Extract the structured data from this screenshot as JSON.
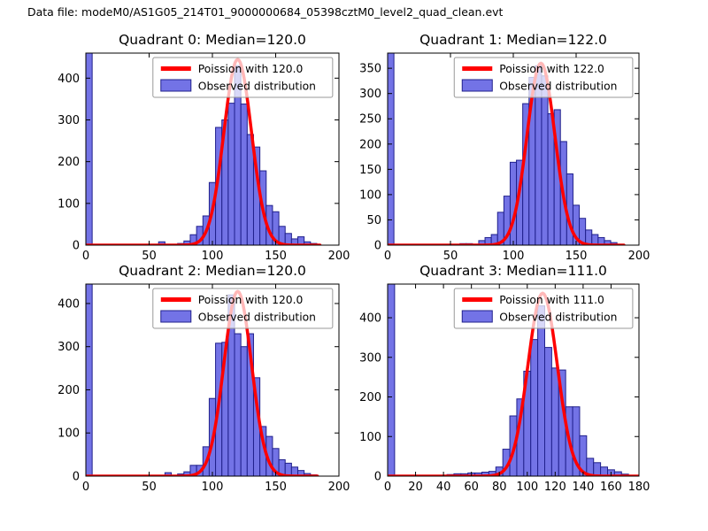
{
  "figure": {
    "title": "Data file: modeM0/AS1G05_214T01_9000000684_05398cztM0_level2_quad_clean.evt",
    "colors": {
      "background": "#ffffff",
      "bar_fill": "#7373e6",
      "bar_edge": "#20208c",
      "curve": "#ff0000",
      "legend_background": "rgba(255,255,255,0.72)",
      "legend_border": "#999999",
      "axis": "#000000"
    }
  },
  "chart_data": [
    {
      "type": "bar",
      "subtype": "histogram-with-fit",
      "title": "Quadrant 0: Median=120.0",
      "median": 120.0,
      "legend": [
        "Poission with 120.0",
        "Observed distribution"
      ],
      "legend_position": "upper right",
      "xlim": [
        0,
        200
      ],
      "ylim": [
        0,
        460
      ],
      "x_ticks": [
        0,
        50,
        100,
        150,
        200
      ],
      "y_ticks": [
        0,
        100,
        200,
        300,
        400
      ],
      "bin_width": 5,
      "bars": [
        [
          0,
          460
        ],
        [
          57.5,
          8
        ],
        [
          72.5,
          4
        ],
        [
          77.5,
          10
        ],
        [
          82.5,
          25
        ],
        [
          87.5,
          45
        ],
        [
          92.5,
          70
        ],
        [
          97.5,
          150
        ],
        [
          102.5,
          282
        ],
        [
          107.5,
          300
        ],
        [
          112.5,
          340
        ],
        [
          117.5,
          430
        ],
        [
          122.5,
          338
        ],
        [
          127.5,
          265
        ],
        [
          132.5,
          235
        ],
        [
          137.5,
          178
        ],
        [
          142.5,
          95
        ],
        [
          147.5,
          80
        ],
        [
          152.5,
          45
        ],
        [
          157.5,
          28
        ],
        [
          162.5,
          15
        ],
        [
          167.5,
          20
        ],
        [
          172.5,
          8
        ],
        [
          177.5,
          4
        ]
      ],
      "poisson_curve": {
        "mean": 120.0,
        "sigma": 10.95,
        "peak": 445,
        "x_range": [
          0,
          185
        ]
      }
    },
    {
      "type": "bar",
      "subtype": "histogram-with-fit",
      "title": "Quadrant 1: Median=122.0",
      "median": 122.0,
      "legend": [
        "Poission with 122.0",
        "Observed distribution"
      ],
      "legend_position": "upper right",
      "xlim": [
        0,
        200
      ],
      "ylim": [
        0,
        380
      ],
      "x_ticks": [
        0,
        50,
        100,
        150,
        200
      ],
      "y_ticks": [
        0,
        50,
        100,
        150,
        200,
        250,
        300,
        350
      ],
      "bin_width": 5,
      "bars": [
        [
          0,
          380
        ],
        [
          57.5,
          3
        ],
        [
          62.5,
          3
        ],
        [
          67.5,
          2
        ],
        [
          72.5,
          9
        ],
        [
          77.5,
          15
        ],
        [
          82.5,
          21
        ],
        [
          87.5,
          65
        ],
        [
          92.5,
          97
        ],
        [
          97.5,
          164
        ],
        [
          102.5,
          168
        ],
        [
          107.5,
          280
        ],
        [
          112.5,
          332
        ],
        [
          117.5,
          355
        ],
        [
          122.5,
          335
        ],
        [
          127.5,
          260
        ],
        [
          132.5,
          268
        ],
        [
          137.5,
          205
        ],
        [
          142.5,
          141
        ],
        [
          147.5,
          79
        ],
        [
          152.5,
          53
        ],
        [
          157.5,
          30
        ],
        [
          162.5,
          21
        ],
        [
          167.5,
          15
        ],
        [
          172.5,
          9
        ],
        [
          177.5,
          5
        ]
      ],
      "poisson_curve": {
        "mean": 122.0,
        "sigma": 11.05,
        "peak": 360,
        "x_range": [
          0,
          188
        ]
      }
    },
    {
      "type": "bar",
      "subtype": "histogram-with-fit",
      "title": "Quadrant 2: Median=120.0",
      "median": 120.0,
      "legend": [
        "Poission with 120.0",
        "Observed distribution"
      ],
      "legend_position": "upper right",
      "xlim": [
        0,
        200
      ],
      "ylim": [
        0,
        445
      ],
      "x_ticks": [
        0,
        50,
        100,
        150,
        200
      ],
      "y_ticks": [
        0,
        100,
        200,
        300,
        400
      ],
      "bin_width": 5,
      "bars": [
        [
          0,
          445
        ],
        [
          62.5,
          8
        ],
        [
          72.5,
          5
        ],
        [
          77.5,
          10
        ],
        [
          82.5,
          25
        ],
        [
          87.5,
          25
        ],
        [
          92.5,
          68
        ],
        [
          97.5,
          180
        ],
        [
          102.5,
          308
        ],
        [
          107.5,
          310
        ],
        [
          112.5,
          420
        ],
        [
          117.5,
          330
        ],
        [
          122.5,
          300
        ],
        [
          127.5,
          330
        ],
        [
          132.5,
          228
        ],
        [
          137.5,
          115
        ],
        [
          142.5,
          92
        ],
        [
          147.5,
          64
        ],
        [
          152.5,
          38
        ],
        [
          157.5,
          30
        ],
        [
          162.5,
          21
        ],
        [
          167.5,
          13
        ],
        [
          172.5,
          6
        ],
        [
          177.5,
          3
        ]
      ],
      "poisson_curve": {
        "mean": 120.0,
        "sigma": 10.95,
        "peak": 428,
        "x_range": [
          0,
          183
        ]
      }
    },
    {
      "type": "bar",
      "subtype": "histogram-with-fit",
      "title": "Quadrant 3: Median=111.0",
      "median": 111.0,
      "legend": [
        "Poission with 111.0",
        "Observed distribution"
      ],
      "legend_position": "upper right",
      "xlim": [
        0,
        180
      ],
      "ylim": [
        0,
        485
      ],
      "x_ticks": [
        0,
        20,
        40,
        60,
        80,
        100,
        120,
        140,
        160,
        180
      ],
      "y_ticks": [
        0,
        100,
        200,
        300,
        400
      ],
      "bin_width": 5,
      "bars": [
        [
          0,
          485
        ],
        [
          42.5,
          4
        ],
        [
          47.5,
          6
        ],
        [
          52.5,
          6
        ],
        [
          57.5,
          8
        ],
        [
          62.5,
          8
        ],
        [
          67.5,
          10
        ],
        [
          72.5,
          12
        ],
        [
          77.5,
          23
        ],
        [
          82.5,
          68
        ],
        [
          87.5,
          152
        ],
        [
          92.5,
          195
        ],
        [
          97.5,
          265
        ],
        [
          102.5,
          345
        ],
        [
          107.5,
          430
        ],
        [
          112.5,
          325
        ],
        [
          117.5,
          273
        ],
        [
          122.5,
          268
        ],
        [
          127.5,
          175
        ],
        [
          132.5,
          175
        ],
        [
          137.5,
          102
        ],
        [
          142.5,
          45
        ],
        [
          147.5,
          34
        ],
        [
          152.5,
          23
        ],
        [
          157.5,
          16
        ],
        [
          162.5,
          11
        ],
        [
          167.5,
          5
        ]
      ],
      "poisson_curve": {
        "mean": 111.0,
        "sigma": 10.54,
        "peak": 462,
        "x_range": [
          0,
          180
        ]
      }
    }
  ]
}
